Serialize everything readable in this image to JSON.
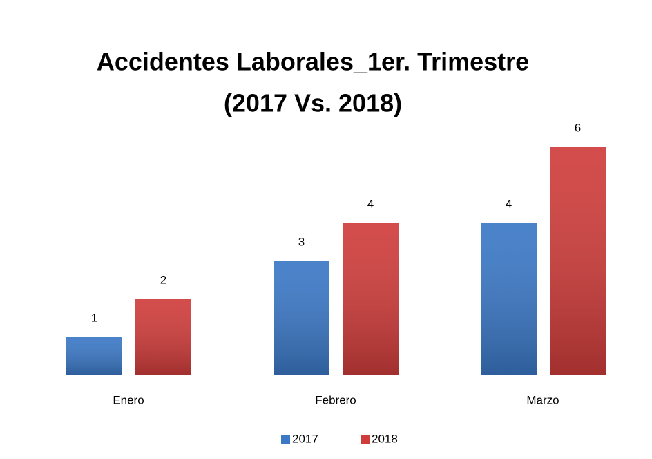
{
  "chart_data": {
    "type": "bar",
    "title": [
      "Accidentes Laborales_1er. Trimestre",
      "(2017 Vs. 2018)"
    ],
    "categories": [
      "Enero",
      "Febrero",
      "Marzo"
    ],
    "series": [
      {
        "name": "2017",
        "color": "#3b78c6",
        "values": [
          1,
          3,
          4
        ]
      },
      {
        "name": "2018",
        "color": "#cf3d3b",
        "values": [
          2,
          4,
          6
        ]
      }
    ],
    "ylim": [
      0,
      7
    ]
  }
}
